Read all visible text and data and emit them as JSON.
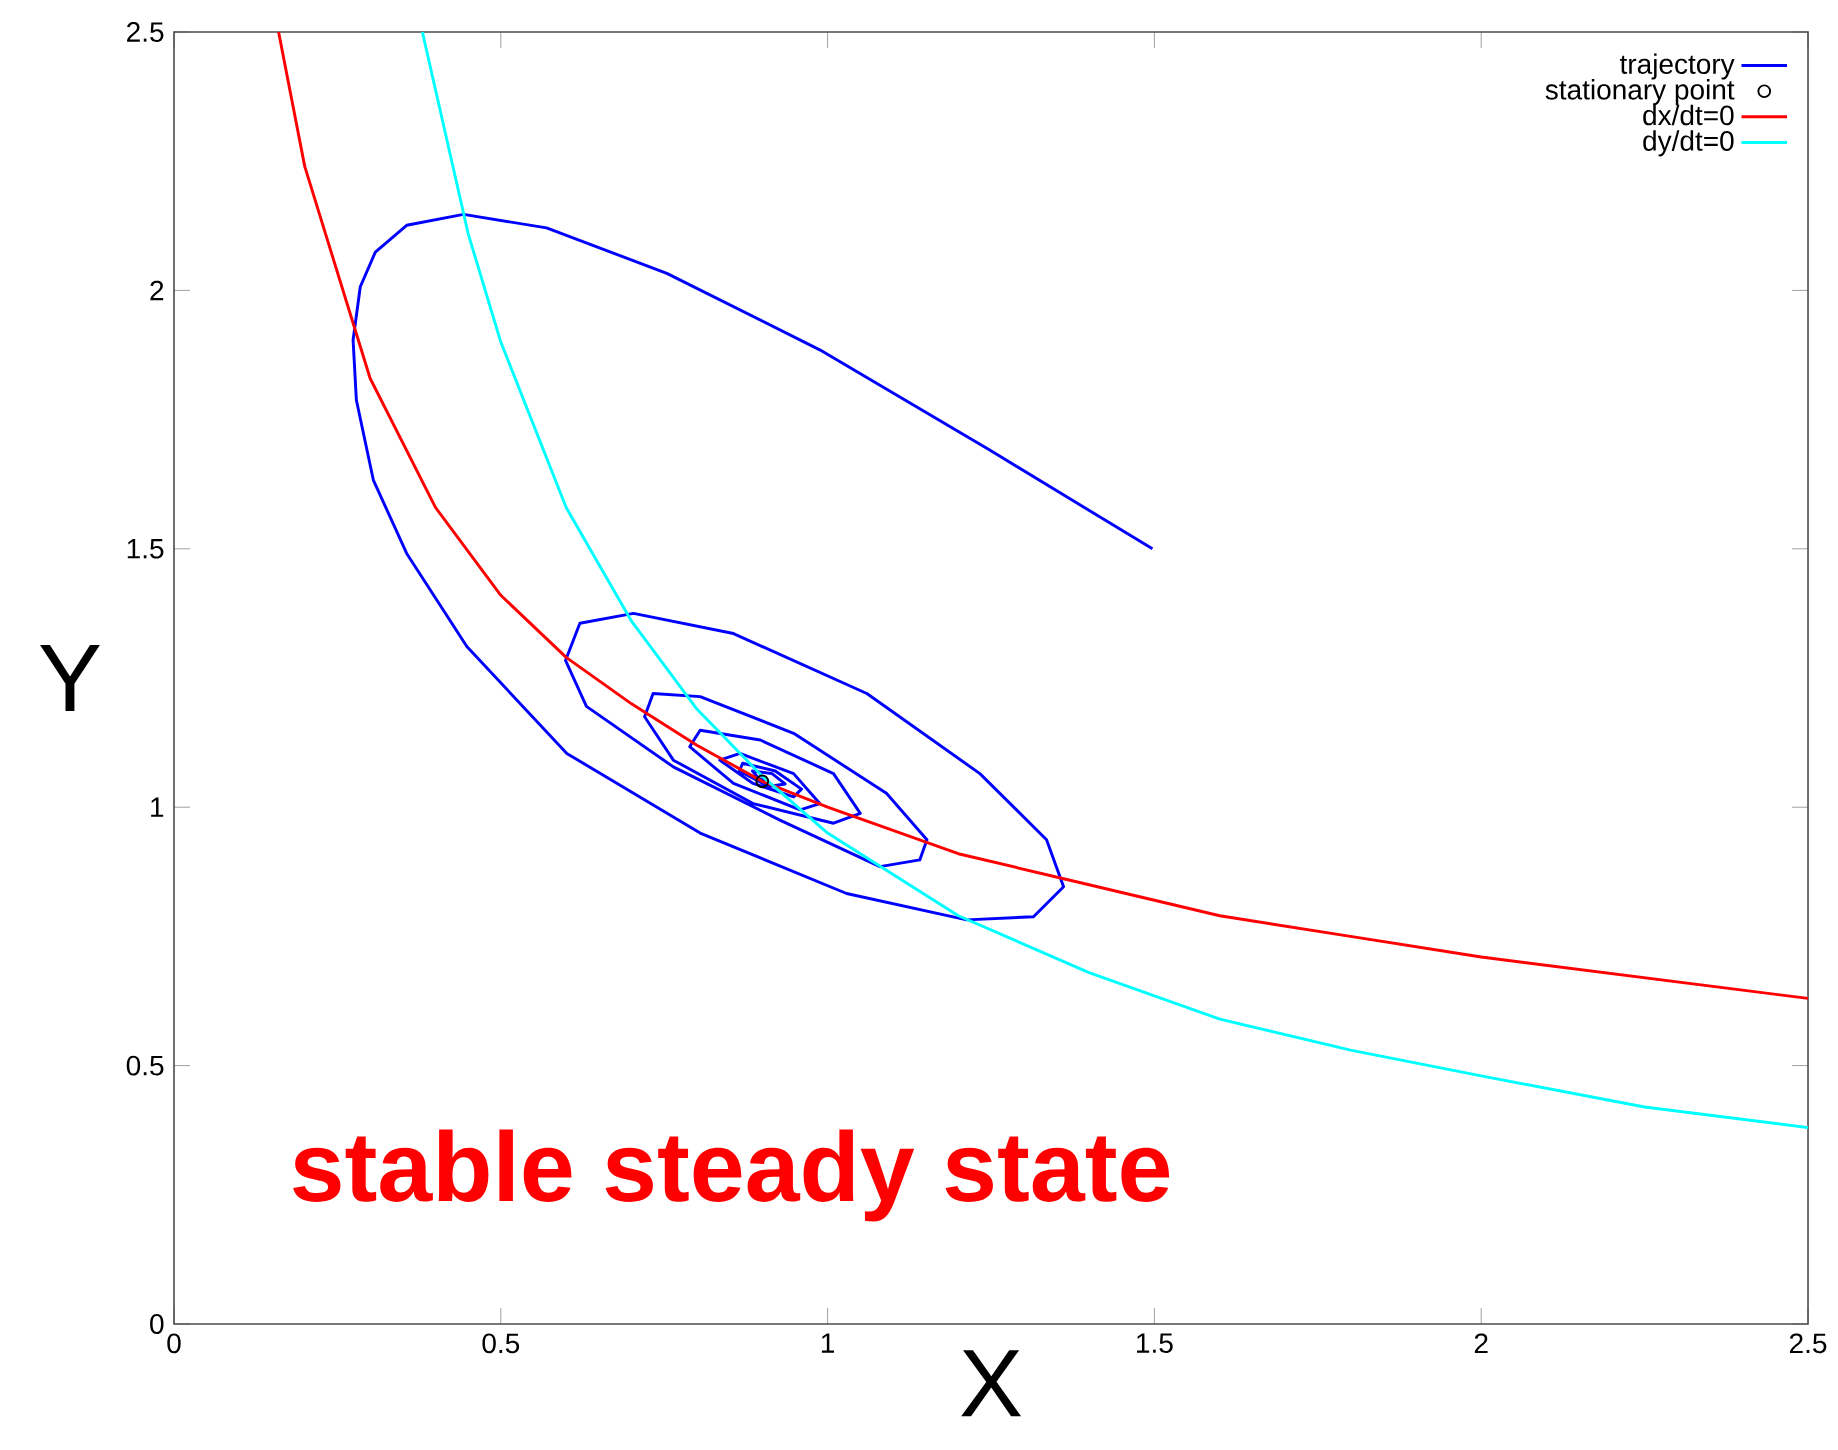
{
  "chart_data": {
    "type": "line",
    "xlabel": "X",
    "ylabel": "Y",
    "xlim": [
      0,
      2.5
    ],
    "ylim": [
      0,
      2.5
    ],
    "xticks": [
      0,
      0.5,
      1,
      1.5,
      2,
      2.5
    ],
    "yticks": [
      0,
      0.5,
      1,
      1.5,
      2,
      2.5
    ],
    "grid": false,
    "legend": "top right",
    "annotations": [
      "stable steady state"
    ],
    "series": [
      {
        "name": "trajectory",
        "color": "#0000ff",
        "x": [
          1.497,
          1.248,
          0.988,
          0.754,
          0.57,
          0.443,
          0.356,
          0.308,
          0.285,
          0.274,
          0.279,
          0.305,
          0.356,
          0.448,
          0.601,
          0.805,
          1.029,
          1.213,
          1.315,
          1.361,
          1.335,
          1.233,
          1.06,
          0.856,
          0.703,
          0.621,
          0.599,
          0.631,
          0.764,
          0.927,
          1.08,
          1.141,
          1.152,
          1.09,
          0.948,
          0.805,
          0.733,
          0.72,
          0.764,
          0.886,
          1.009,
          1.05,
          1.009,
          0.897,
          0.805,
          0.789,
          0.856,
          0.958,
          0.988,
          0.948,
          0.866,
          0.835,
          0.886,
          0.948,
          0.96,
          0.92,
          0.87,
          0.865,
          0.91,
          0.935,
          0.915,
          0.885,
          0.895,
          0.905
        ],
        "values": [
          1.5,
          1.691,
          1.885,
          2.033,
          2.121,
          2.147,
          2.126,
          2.074,
          2.007,
          1.904,
          1.788,
          1.633,
          1.491,
          1.311,
          1.104,
          0.95,
          0.833,
          0.782,
          0.788,
          0.846,
          0.937,
          1.065,
          1.22,
          1.336,
          1.375,
          1.356,
          1.284,
          1.195,
          1.078,
          0.975,
          0.885,
          0.898,
          0.937,
          1.027,
          1.143,
          1.214,
          1.22,
          1.175,
          1.091,
          1.007,
          0.969,
          0.988,
          1.065,
          1.13,
          1.149,
          1.117,
          1.046,
          0.995,
          1.007,
          1.065,
          1.104,
          1.091,
          1.046,
          1.02,
          1.035,
          1.07,
          1.085,
          1.07,
          1.04,
          1.045,
          1.065,
          1.07,
          1.055,
          1.053
        ]
      },
      {
        "name": "stationary point",
        "type": "scatter",
        "marker": "circle",
        "color": "#000000",
        "x": [
          0.9
        ],
        "values": [
          1.05
        ]
      },
      {
        "name": "dx/dt=0",
        "color": "#ff0000",
        "x": [
          0.16,
          0.2,
          0.3,
          0.4,
          0.5,
          0.6,
          0.7,
          0.8,
          0.9,
          1.0,
          1.2,
          1.4,
          1.6,
          1.8,
          2.0,
          2.25,
          2.5
        ],
        "values": [
          2.5,
          2.24,
          1.83,
          1.58,
          1.41,
          1.29,
          1.2,
          1.12,
          1.05,
          1.0,
          0.91,
          0.85,
          0.79,
          0.75,
          0.71,
          0.67,
          0.63
        ]
      },
      {
        "name": "dy/dt=0",
        "color": "#00ffff",
        "x": [
          0.38,
          0.45,
          0.5,
          0.6,
          0.7,
          0.8,
          0.9,
          1.0,
          1.2,
          1.4,
          1.6,
          1.8,
          2.0,
          2.25,
          2.5
        ],
        "values": [
          2.5,
          2.11,
          1.9,
          1.58,
          1.36,
          1.19,
          1.06,
          0.95,
          0.79,
          0.68,
          0.59,
          0.53,
          0.48,
          0.42,
          0.38
        ]
      }
    ]
  }
}
